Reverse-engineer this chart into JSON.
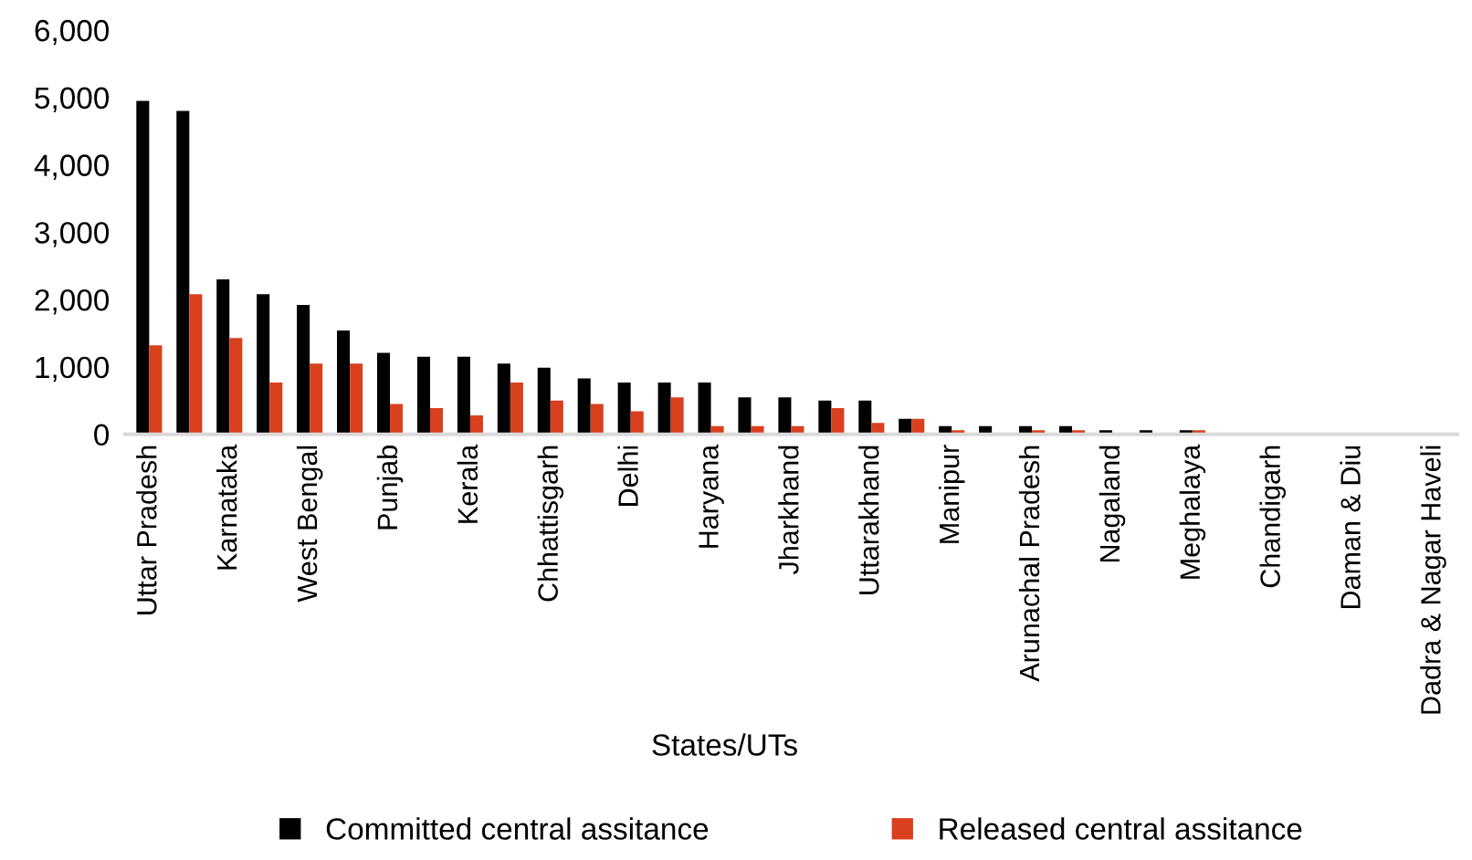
{
  "chart_data": {
    "type": "bar",
    "xlabel": "States/UTs",
    "categories": [
      "Uttar Pradesh",
      null,
      "Karnataka",
      null,
      "West Bengal",
      null,
      "Punjab",
      null,
      "Kerala",
      null,
      "Chhattisgarh",
      null,
      "Delhi",
      null,
      "Haryana",
      null,
      "Jharkhand",
      null,
      "Uttarakhand",
      null,
      "Manipur",
      null,
      "Arunachal Pradesh",
      null,
      "Nagaland",
      null,
      "Meghalaya",
      null,
      "Chandigarh",
      null,
      "Daman & Diu",
      null,
      "Dadra & Nagar Haveli"
    ],
    "series": [
      {
        "name": "Committed central assitance",
        "color": "#000000",
        "values": [
          4950,
          4800,
          2300,
          2080,
          1920,
          1540,
          1210,
          1150,
          1150,
          1050,
          990,
          830,
          770,
          770,
          770,
          550,
          550,
          500,
          500,
          230,
          120,
          120,
          120,
          120,
          60,
          60,
          60,
          null,
          null,
          null,
          null,
          null,
          null
        ]
      },
      {
        "name": "Released central assitance",
        "color": "#d9401e",
        "values": [
          1320,
          2080,
          1430,
          770,
          1050,
          1050,
          450,
          390,
          280,
          770,
          500,
          450,
          340,
          550,
          120,
          120,
          120,
          390,
          170,
          230,
          60,
          null,
          60,
          60,
          null,
          null,
          60,
          null,
          null,
          null,
          null,
          null,
          null
        ]
      }
    ],
    "ylim": [
      0,
      6000
    ],
    "yticks": [
      {
        "value": 0,
        "label": "0"
      },
      {
        "value": 1000,
        "label": "1,000"
      },
      {
        "value": 2000,
        "label": "2,000"
      },
      {
        "value": 3000,
        "label": "3,000"
      },
      {
        "value": 4000,
        "label": "4,000"
      },
      {
        "value": 5000,
        "label": "5,000"
      },
      {
        "value": 6000,
        "label": "6,000"
      }
    ],
    "grid": false,
    "legend": "bottom"
  }
}
